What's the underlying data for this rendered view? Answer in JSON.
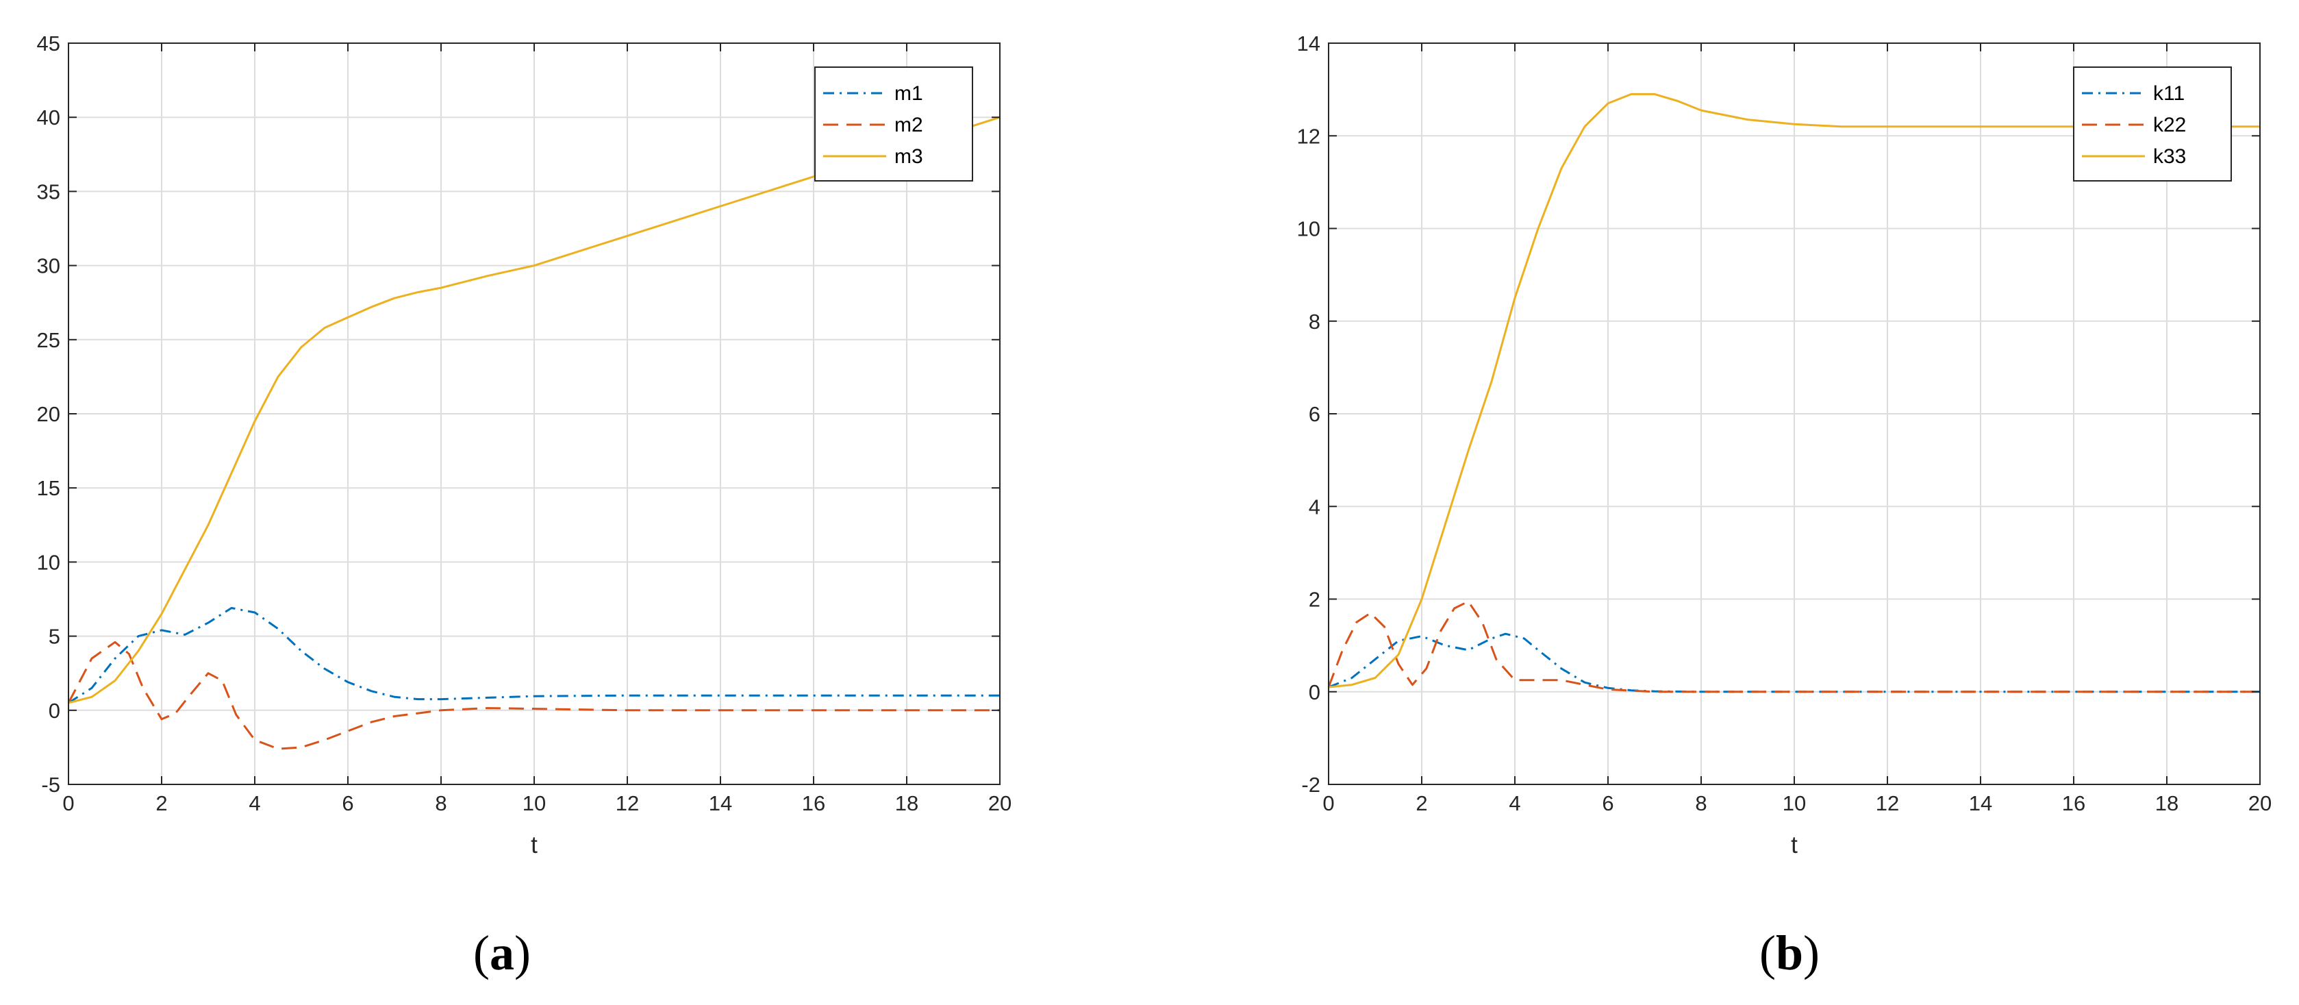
{
  "captions": {
    "a": "a",
    "b": "b"
  },
  "colors": {
    "blue": "#0072BD",
    "orange": "#D95319",
    "yellow": "#EDB120",
    "grid": "#DDDDDD",
    "axis": "#262626"
  },
  "chart_data": [
    {
      "id": "a",
      "type": "line",
      "xlabel": "t",
      "ylabel": "",
      "xlim": [
        0,
        20
      ],
      "ylim": [
        -5,
        45
      ],
      "xticks": [
        0,
        2,
        4,
        6,
        8,
        10,
        12,
        14,
        16,
        18,
        20
      ],
      "yticks": [
        -5,
        0,
        5,
        10,
        15,
        20,
        25,
        30,
        35,
        40,
        45
      ],
      "grid": true,
      "legend_position": "top-right",
      "series": [
        {
          "name": "m1",
          "color": "#0072BD",
          "style": "dashdot",
          "x": [
            0,
            0.5,
            1,
            1.5,
            2,
            2.5,
            3,
            3.5,
            4,
            4.5,
            5,
            5.5,
            6,
            6.5,
            7,
            7.5,
            8,
            9,
            10,
            12,
            14,
            16,
            18,
            20
          ],
          "y": [
            0.5,
            1.5,
            3.5,
            5.0,
            5.4,
            5.1,
            5.9,
            6.9,
            6.6,
            5.5,
            4.0,
            2.8,
            1.9,
            1.3,
            0.9,
            0.75,
            0.75,
            0.85,
            0.95,
            1.0,
            1.0,
            1.0,
            1.0,
            1.0
          ]
        },
        {
          "name": "m2",
          "color": "#D95319",
          "style": "dashed",
          "x": [
            0,
            0.5,
            1,
            1.3,
            1.6,
            2,
            2.3,
            2.6,
            3,
            3.3,
            3.6,
            4,
            4.5,
            5,
            5.5,
            6,
            6.5,
            7,
            8,
            9,
            10,
            12,
            14,
            16,
            18,
            20
          ],
          "y": [
            0.5,
            3.5,
            4.6,
            3.8,
            1.5,
            -0.6,
            -0.2,
            1.0,
            2.5,
            2.0,
            -0.3,
            -2.0,
            -2.6,
            -2.5,
            -2.0,
            -1.4,
            -0.8,
            -0.4,
            0.0,
            0.15,
            0.1,
            0.0,
            0.0,
            0.0,
            0.0,
            0.0
          ]
        },
        {
          "name": "m3",
          "color": "#EDB120",
          "style": "solid",
          "x": [
            0,
            0.5,
            1,
            1.5,
            2,
            2.5,
            3,
            3.5,
            4,
            4.5,
            5,
            5.5,
            6,
            6.5,
            7,
            7.5,
            8,
            9,
            10,
            12,
            14,
            16,
            18,
            20
          ],
          "y": [
            0.5,
            0.9,
            2.0,
            4.0,
            6.5,
            9.5,
            12.5,
            16.0,
            19.5,
            22.5,
            24.5,
            25.8,
            26.5,
            27.2,
            27.8,
            28.2,
            28.5,
            29.3,
            30.0,
            32.0,
            34.0,
            36.0,
            38.0,
            40.0
          ]
        }
      ]
    },
    {
      "id": "b",
      "type": "line",
      "xlabel": "t",
      "ylabel": "",
      "xlim": [
        0,
        20
      ],
      "ylim": [
        -2,
        14
      ],
      "xticks": [
        0,
        2,
        4,
        6,
        8,
        10,
        12,
        14,
        16,
        18,
        20
      ],
      "yticks": [
        -2,
        0,
        2,
        4,
        6,
        8,
        10,
        12,
        14
      ],
      "grid": true,
      "legend_position": "top-right",
      "series": [
        {
          "name": "k11",
          "color": "#0072BD",
          "style": "dashdot",
          "x": [
            0,
            0.5,
            1,
            1.5,
            2,
            2.5,
            3,
            3.5,
            3.8,
            4.2,
            4.5,
            5,
            5.5,
            6,
            6.5,
            7,
            8,
            10,
            12,
            14,
            16,
            18,
            20
          ],
          "y": [
            0.1,
            0.3,
            0.7,
            1.1,
            1.2,
            1.0,
            0.9,
            1.15,
            1.25,
            1.15,
            0.9,
            0.5,
            0.2,
            0.08,
            0.03,
            0.01,
            0.0,
            0.0,
            0.0,
            0.0,
            0.0,
            0.0,
            0.0
          ]
        },
        {
          "name": "k22",
          "color": "#D95319",
          "style": "dashed",
          "x": [
            0,
            0.3,
            0.6,
            0.9,
            1.2,
            1.5,
            1.8,
            2.1,
            2.4,
            2.7,
            3.0,
            3.3,
            3.6,
            4.0,
            4.5,
            5,
            5.5,
            6,
            7,
            8,
            10,
            12,
            14,
            16,
            18,
            20
          ],
          "y": [
            0.1,
            0.9,
            1.5,
            1.7,
            1.4,
            0.6,
            0.15,
            0.5,
            1.3,
            1.8,
            1.95,
            1.5,
            0.7,
            0.25,
            0.25,
            0.25,
            0.15,
            0.05,
            0.0,
            0.0,
            0.0,
            0.0,
            0.0,
            0.0,
            0.0,
            0.0
          ]
        },
        {
          "name": "k33",
          "color": "#EDB120",
          "style": "solid",
          "x": [
            0,
            0.5,
            1,
            1.5,
            2,
            2.5,
            3,
            3.5,
            4,
            4.5,
            5,
            5.5,
            6,
            6.5,
            7,
            7.5,
            8,
            9,
            10,
            11,
            12,
            14,
            16,
            18,
            20
          ],
          "y": [
            0.1,
            0.15,
            0.3,
            0.8,
            2.0,
            3.6,
            5.2,
            6.7,
            8.5,
            10.0,
            11.3,
            12.2,
            12.7,
            12.9,
            12.9,
            12.75,
            12.55,
            12.35,
            12.25,
            12.2,
            12.2,
            12.2,
            12.2,
            12.2,
            12.2
          ]
        }
      ]
    }
  ]
}
